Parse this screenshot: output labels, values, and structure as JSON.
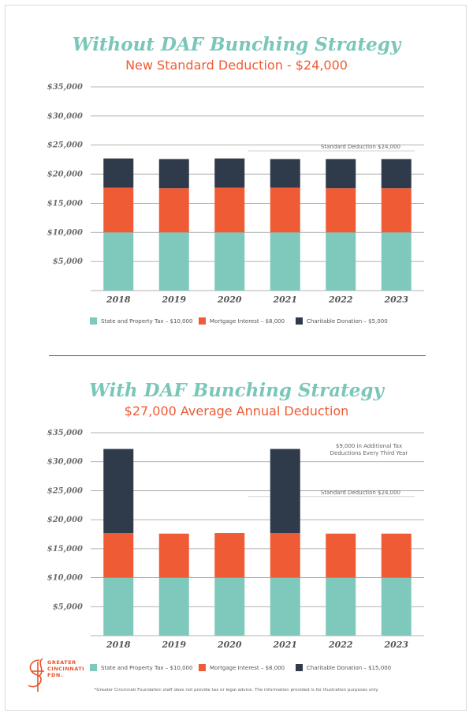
{
  "colors": {
    "teal": "#7ec9bb",
    "orange": "#ef5b35",
    "dark": "#2f3a4a",
    "title_teal": "#7ac7b9"
  },
  "chart_data": [
    {
      "type": "bar",
      "stacked": true,
      "title": "Without DAF Bunching Strategy",
      "subtitle": "New Standard Deduction - $24,000",
      "categories": [
        "2018",
        "2019",
        "2020",
        "2021",
        "2022",
        "2023"
      ],
      "series": [
        {
          "name": "State and Property Tax – $10,000",
          "color": "#7ec9bb",
          "values": [
            10000,
            10000,
            10000,
            10000,
            10000,
            10000
          ]
        },
        {
          "name": "Mortgage Interest – $8,000",
          "color": "#ef5b35",
          "values": [
            7700,
            7600,
            7700,
            7700,
            7600,
            7600
          ]
        },
        {
          "name": "Charitable Donation – $5,000",
          "color": "#2f3a4a",
          "values": [
            5000,
            5000,
            5000,
            4900,
            5000,
            5000
          ]
        }
      ],
      "ylim": [
        0,
        35000
      ],
      "yticks": [
        5000,
        10000,
        15000,
        20000,
        25000,
        30000,
        35000
      ],
      "ytick_labels": [
        "$5,000",
        "$10,000",
        "$15,000",
        "$20,000",
        "$25,000",
        "$30,000",
        "$35,000"
      ],
      "reference_line": {
        "value": 24000,
        "label": "Standard Deduction $24,000"
      },
      "annotations": [],
      "grid": true,
      "legend": "bottom"
    },
    {
      "type": "bar",
      "stacked": true,
      "title": "With DAF Bunching Strategy",
      "subtitle": "$27,000 Average Annual Deduction",
      "categories": [
        "2018",
        "2019",
        "2020",
        "2021",
        "2022",
        "2023"
      ],
      "series": [
        {
          "name": "State and Property Tax – $10,000",
          "color": "#7ec9bb",
          "values": [
            10000,
            10000,
            10000,
            10000,
            10000,
            10000
          ]
        },
        {
          "name": "Mortgage Interest – $8,000",
          "color": "#ef5b35",
          "values": [
            7700,
            7600,
            7700,
            7700,
            7600,
            7600
          ]
        },
        {
          "name": "Charitable Donation – $15,000",
          "color": "#2f3a4a",
          "values": [
            14500,
            0,
            0,
            14500,
            0,
            0
          ]
        }
      ],
      "ylim": [
        0,
        35000
      ],
      "yticks": [
        5000,
        10000,
        15000,
        20000,
        25000,
        30000,
        35000
      ],
      "ytick_labels": [
        "$5,000",
        "$10,000",
        "$15,000",
        "$20,000",
        "$25,000",
        "$30,000",
        "$35,000"
      ],
      "reference_line": {
        "value": 24000,
        "label": "Standard Deduction $24,000"
      },
      "annotations": [
        "$9,000 in Additional Tax",
        "Deductions Every Third Year"
      ],
      "grid": true,
      "legend": "bottom"
    }
  ],
  "logo": {
    "lines": [
      "GREATER",
      "CINCINNATI",
      "FDN."
    ]
  },
  "footnote": "*Greater Cincinnati Foundation staff does not provide tax or legal advice. The information provided is for illustration purposes only."
}
